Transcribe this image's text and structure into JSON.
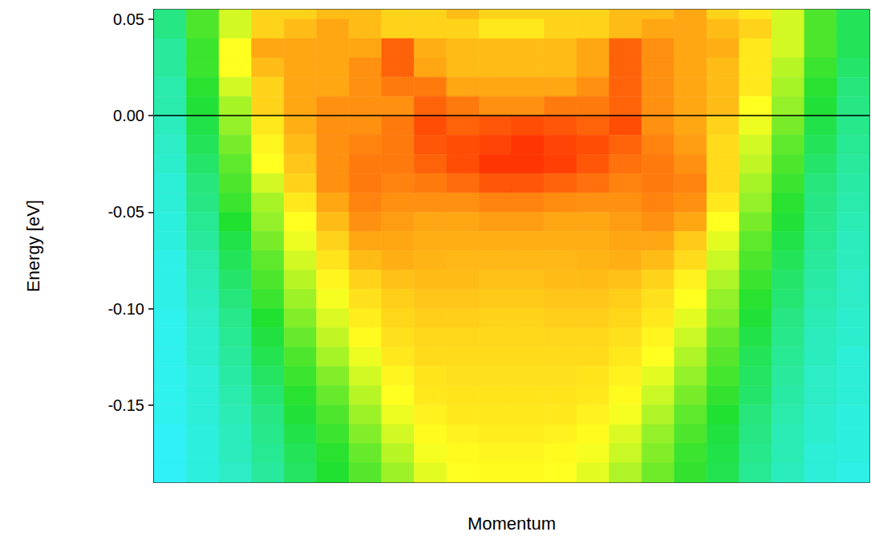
{
  "chart_data": {
    "type": "heatmap",
    "x_label": "Momentum",
    "y_label": "Energy [eV]",
    "categories": [
      null,
      null,
      null,
      null,
      null,
      null,
      null,
      null,
      null,
      null,
      null,
      null,
      null,
      null,
      null,
      null,
      null,
      null,
      null,
      null,
      null,
      null
    ],
    "y": [
      0.055,
      0.045,
      0.035,
      0.025,
      0.015,
      0.005,
      -0.005,
      -0.015,
      -0.025,
      -0.035,
      -0.045,
      -0.055,
      -0.065,
      -0.075,
      -0.085,
      -0.095,
      -0.105,
      -0.115,
      -0.125,
      -0.135,
      -0.145,
      -0.155,
      -0.165,
      -0.175,
      -0.185
    ],
    "values": [
      [
        1.5,
        3,
        4.5,
        6,
        6,
        6.5,
        6.5,
        6,
        6,
        6.5,
        6,
        6,
        6,
        6,
        6.5,
        6.5,
        7,
        6,
        5.5,
        4.5,
        3,
        2
      ],
      [
        1.5,
        3,
        4.5,
        6,
        6.5,
        7,
        6.5,
        6,
        6,
        6,
        5.5,
        5.5,
        6,
        6,
        6.5,
        7,
        7,
        6.5,
        6,
        4.5,
        3,
        2
      ],
      [
        1.2,
        2.8,
        5,
        7,
        7,
        7,
        7,
        8.5,
        6.8,
        6.5,
        6.5,
        6.5,
        6.5,
        7,
        8.5,
        7.5,
        7,
        6.8,
        5.5,
        4.5,
        3,
        2
      ],
      [
        1.2,
        2.8,
        5,
        6.5,
        7,
        7,
        7.5,
        8.5,
        7,
        6.5,
        6.5,
        6.5,
        6.5,
        7,
        8.5,
        7.5,
        7,
        6.5,
        5.5,
        4.2,
        2.8,
        1.8
      ],
      [
        1,
        2.6,
        4.5,
        6,
        7,
        7,
        7.5,
        8,
        8,
        7,
        7,
        7,
        7,
        7.5,
        8.5,
        7.5,
        7,
        6.5,
        5.5,
        4,
        2.6,
        1.6
      ],
      [
        1,
        2.4,
        4,
        6,
        7,
        7.5,
        7.5,
        7.5,
        8.5,
        8,
        7.5,
        7.5,
        8,
        8,
        8.5,
        7.5,
        7,
        6.5,
        5,
        3.8,
        2.4,
        1.5
      ],
      [
        0.8,
        2.2,
        3.8,
        5.5,
        6.8,
        7.5,
        7.5,
        8,
        9,
        8.5,
        8.8,
        9,
        8.8,
        8.5,
        9,
        7.5,
        7,
        6,
        4.8,
        3.5,
        2.2,
        1.4
      ],
      [
        0.7,
        2,
        3.5,
        5.2,
        6.5,
        7.5,
        7.8,
        8,
        8.8,
        9,
        9.2,
        9.5,
        9.2,
        9,
        8.5,
        7.8,
        7.2,
        5.8,
        4.5,
        3.2,
        2,
        1.3
      ],
      [
        0.6,
        1.8,
        3.2,
        5,
        6.3,
        7.5,
        8,
        8,
        8.5,
        9,
        9.5,
        9.5,
        9.3,
        8.8,
        8.2,
        8,
        7.5,
        5.8,
        4.3,
        3,
        1.8,
        1.2
      ],
      [
        0.5,
        1.6,
        3,
        4.5,
        6,
        7.5,
        8,
        7.8,
        8,
        8.3,
        8.8,
        8.8,
        8.5,
        8.2,
        7.8,
        8,
        7.8,
        5.8,
        4,
        2.8,
        1.6,
        1.1
      ],
      [
        0.5,
        1.5,
        2.8,
        4,
        5.5,
        7,
        7.8,
        7.5,
        7.5,
        7.5,
        7.8,
        7.8,
        7.6,
        7.5,
        7.5,
        7.8,
        7.5,
        5.5,
        3.8,
        2.6,
        1.5,
        1
      ],
      [
        0.4,
        1.3,
        2.5,
        3.8,
        5,
        6.5,
        7.5,
        7.2,
        7,
        7,
        7.2,
        7.2,
        7,
        7,
        7.2,
        7.5,
        7,
        5,
        3.5,
        2.4,
        1.4,
        0.9
      ],
      [
        0.4,
        1.2,
        2.2,
        3.5,
        4.8,
        6,
        7,
        7,
        6.8,
        6.8,
        6.8,
        6.8,
        6.8,
        6.8,
        7,
        7,
        6.2,
        4.7,
        3.2,
        2.2,
        1.3,
        0.8
      ],
      [
        0.3,
        1,
        2,
        3.2,
        4.5,
        5.6,
        6.5,
        6.8,
        6.7,
        6.6,
        6.6,
        6.6,
        6.6,
        6.7,
        6.8,
        6.5,
        5.8,
        4.4,
        3,
        2,
        1.2,
        0.8
      ],
      [
        0.3,
        0.9,
        1.8,
        3,
        4.2,
        5.2,
        6,
        6.4,
        6.5,
        6.5,
        6.4,
        6.4,
        6.5,
        6.5,
        6.4,
        6,
        5.3,
        4.1,
        2.8,
        1.8,
        1.1,
        0.7
      ],
      [
        0.3,
        0.8,
        1.6,
        2.8,
        3.9,
        4.9,
        5.7,
        6.1,
        6.3,
        6.3,
        6.2,
        6.2,
        6.3,
        6.3,
        6.1,
        5.7,
        5,
        3.8,
        2.6,
        1.7,
        1,
        0.7
      ],
      [
        0.2,
        0.7,
        1.4,
        2.5,
        3.6,
        4.6,
        5.4,
        5.9,
        6.1,
        6.1,
        6,
        6,
        6.1,
        6.1,
        5.9,
        5.5,
        4.7,
        3.6,
        2.4,
        1.5,
        0.9,
        0.6
      ],
      [
        0.2,
        0.6,
        1.3,
        2.3,
        3.3,
        4.3,
        5.1,
        5.7,
        5.9,
        5.9,
        5.9,
        5.9,
        5.9,
        5.9,
        5.7,
        5.2,
        4.4,
        3.3,
        2.2,
        1.4,
        0.8,
        0.6
      ],
      [
        0.2,
        0.6,
        1.2,
        2.1,
        3,
        4,
        4.8,
        5.5,
        5.8,
        5.8,
        5.8,
        5.8,
        5.8,
        5.8,
        5.5,
        5,
        4.1,
        3.1,
        2,
        1.3,
        0.8,
        0.5
      ],
      [
        0.2,
        0.5,
        1.1,
        1.9,
        2.8,
        3.6,
        4.5,
        5.2,
        5.6,
        5.7,
        5.7,
        5.7,
        5.7,
        5.6,
        5.3,
        4.7,
        3.8,
        2.9,
        1.9,
        1.2,
        0.7,
        0.5
      ],
      [
        0.2,
        0.5,
        1,
        1.7,
        2.6,
        3.3,
        4.2,
        5,
        5.5,
        5.6,
        5.6,
        5.6,
        5.6,
        5.5,
        5.1,
        4.4,
        3.5,
        2.7,
        1.8,
        1.1,
        0.7,
        0.5
      ],
      [
        0.2,
        0.5,
        0.9,
        1.5,
        2.4,
        3,
        3.9,
        4.8,
        5.3,
        5.5,
        5.5,
        5.5,
        5.5,
        5.3,
        4.9,
        4.1,
        3.2,
        2.5,
        1.6,
        1,
        0.6,
        0.4
      ],
      [
        0.1,
        0.4,
        0.8,
        1.4,
        2.2,
        2.8,
        3.6,
        4.5,
        5.1,
        5.3,
        5.4,
        5.4,
        5.3,
        5.1,
        4.6,
        3.8,
        3,
        2.3,
        1.5,
        0.9,
        0.6,
        0.4
      ],
      [
        0.1,
        0.4,
        0.8,
        1.3,
        2,
        2.6,
        3.3,
        4.2,
        4.9,
        5.1,
        5.2,
        5.2,
        5.1,
        4.9,
        4.4,
        3.6,
        2.8,
        2.2,
        1.4,
        0.9,
        0.5,
        0.4
      ],
      [
        0.1,
        0.4,
        0.7,
        1.2,
        1.9,
        2.5,
        3.1,
        3.9,
        4.7,
        5,
        5.1,
        5.1,
        5,
        4.7,
        4.1,
        3.4,
        2.7,
        2.1,
        1.3,
        0.8,
        0.5,
        0.3
      ]
    ],
    "ylim": [
      -0.19,
      0.055
    ],
    "yticks": [
      {
        "value": -0.15,
        "label": "-0.15"
      },
      {
        "value": -0.1,
        "label": "-0.10"
      },
      {
        "value": -0.05,
        "label": "-0.05"
      },
      {
        "value": 0,
        "label": "0.00"
      },
      {
        "value": 0.05,
        "label": "0.05"
      }
    ],
    "zlim": [
      0,
      10
    ],
    "hline": 0,
    "tick_labels": "y",
    "grid": false
  }
}
